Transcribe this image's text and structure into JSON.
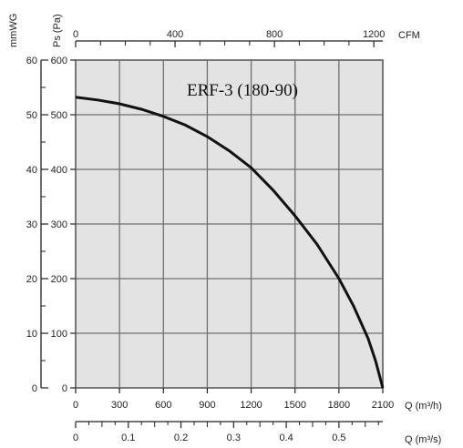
{
  "chart_data": {
    "type": "line",
    "title": "ERF-3 (180-90)",
    "xlabel": "Q (m³/h)",
    "xlim": [
      0,
      2100
    ],
    "x_ticks": [
      "0",
      "300",
      "600",
      "900",
      "1200",
      "1500",
      "1800",
      "2100"
    ],
    "ylabel": "Ps (Pa)",
    "ylim": [
      0,
      600
    ],
    "y_ticks": [
      "0",
      "100",
      "200",
      "300",
      "400",
      "500",
      "600"
    ],
    "ylabel_secondary": "mmWG",
    "ylim_secondary": [
      0,
      60
    ],
    "y_ticks_secondary": [
      "0",
      "10",
      "20",
      "30",
      "40",
      "50",
      "60"
    ],
    "xlabel_top": "CFM",
    "xlim_top": [
      0,
      1236
    ],
    "x_ticks_top": [
      "0",
      "400",
      "800",
      "1200"
    ],
    "xlabel_bottom2": "Q (m³/s)",
    "xlim_bottom2": [
      0,
      0.5833
    ],
    "x_ticks_bottom2": [
      "0",
      "0.1",
      "0.2",
      "0.3",
      "0.4",
      "0.5"
    ],
    "grid": true,
    "series": [
      {
        "x": [
          0,
          150,
          300,
          450,
          600,
          750,
          900,
          1050,
          1200,
          1350,
          1500,
          1650,
          1800,
          1900,
          2000,
          2050,
          2100
        ],
        "values": [
          532,
          527,
          520,
          510,
          497,
          481,
          460,
          434,
          403,
          362,
          315,
          263,
          200,
          150,
          90,
          50,
          0
        ]
      }
    ]
  }
}
